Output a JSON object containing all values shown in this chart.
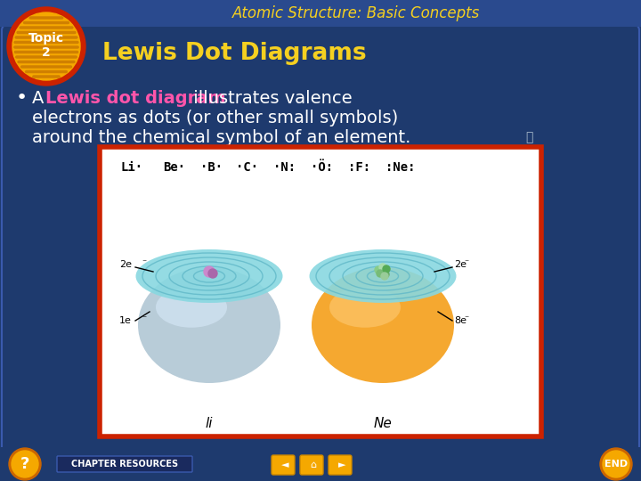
{
  "bg_color": "#1e3a6e",
  "header_color": "#2a4a8e",
  "header_text": "Atomic Structure: Basic Concepts",
  "header_text_color": "#f5d020",
  "topic_outer_color": "#cc2200",
  "topic_inner_color": "#f5a800",
  "topic_stripe_color": "#d08000",
  "topic_text": "Topic\n2",
  "topic_text_color": "white",
  "title_text": "Lewis Dot Diagrams",
  "title_text_color": "#f5d020",
  "body_pink_color": "#ff55aa",
  "body_text_color": "white",
  "footer_bg_color": "#1e3a6e",
  "footer_btn_color": "#f5a800",
  "footer_resources_bg": "#2a3a5e",
  "footer_resources_text": "CHAPTER RESOURCES",
  "image_border_color": "#cc2200",
  "image_bg": "white",
  "li_bowl_color": "#b8ccd8",
  "li_bowl_highlight": "#ddeeff",
  "ne_bowl_color": "#f5a830",
  "ne_bowl_highlight": "#ffd080",
  "teal_color": "#88d8e0",
  "teal_dark": "#60b8c8",
  "ring_color": "#70c8d8"
}
